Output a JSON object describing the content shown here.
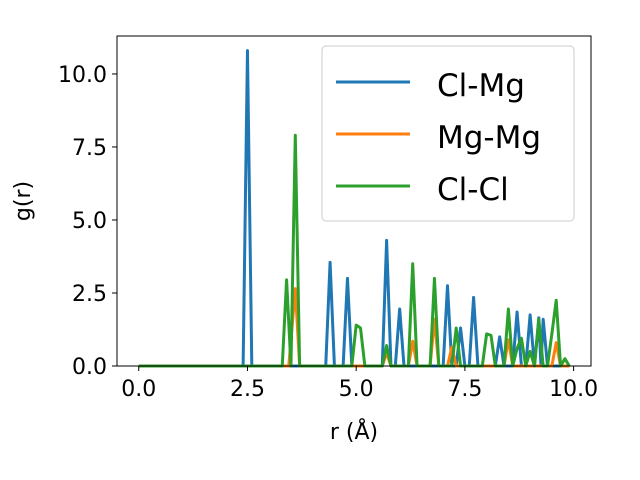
{
  "chart_data": {
    "type": "line",
    "xlabel": "r (Å)",
    "ylabel": "g(r)",
    "xlim": [
      -0.5,
      10.4
    ],
    "ylim": [
      0,
      11.3
    ],
    "xticks": [
      0.0,
      2.5,
      5.0,
      7.5,
      10.0
    ],
    "xtick_labels": [
      "0.0",
      "2.5",
      "5.0",
      "7.5",
      "10.0"
    ],
    "yticks": [
      0.0,
      2.5,
      5.0,
      7.5,
      10.0
    ],
    "ytick_labels": [
      "0.0",
      "2.5",
      "5.0",
      "7.5",
      "10.0"
    ],
    "legend_position": "top-right",
    "grid": false,
    "series": [
      {
        "name": "Cl-Mg",
        "color": "#1f77b4",
        "x": [
          0.0,
          2.4,
          2.5,
          2.6,
          4.3,
          4.4,
          4.5,
          4.7,
          4.8,
          4.9,
          5.6,
          5.7,
          5.8,
          5.9,
          6.0,
          6.1,
          7.0,
          7.1,
          7.2,
          7.3,
          7.4,
          7.5,
          7.6,
          7.7,
          7.8,
          8.2,
          8.3,
          8.4,
          8.6,
          8.7,
          8.8,
          8.9,
          9.0,
          9.1,
          9.2,
          9.25,
          9.3,
          9.4,
          9.9
        ],
        "y": [
          0.0,
          0.0,
          10.8,
          0.0,
          0.0,
          3.55,
          0.0,
          0.0,
          3.0,
          0.0,
          0.0,
          4.3,
          0.0,
          0.0,
          1.95,
          0.0,
          0.0,
          2.75,
          0.0,
          0.0,
          1.3,
          0.0,
          0.0,
          2.35,
          0.0,
          0.0,
          1.0,
          0.0,
          0.0,
          1.85,
          0.0,
          0.0,
          1.75,
          0.0,
          1.65,
          0.0,
          1.6,
          0.0,
          0.0
        ]
      },
      {
        "name": "Mg-Mg",
        "color": "#ff7f0e",
        "x": [
          0.0,
          3.45,
          3.6,
          3.7,
          5.6,
          5.7,
          5.8,
          6.2,
          6.3,
          6.4,
          6.7,
          6.8,
          6.9,
          7.1,
          7.2,
          7.3,
          8.4,
          8.5,
          8.6,
          9.5,
          9.6,
          9.7,
          9.9
        ],
        "y": [
          0.0,
          0.0,
          2.65,
          0.0,
          0.0,
          0.45,
          0.0,
          0.0,
          0.85,
          0.0,
          0.0,
          1.6,
          0.0,
          0.0,
          0.65,
          0.0,
          0.0,
          0.9,
          0.0,
          0.0,
          0.8,
          0.0,
          0.0
        ]
      },
      {
        "name": "Cl-Cl",
        "color": "#2ca02c",
        "x": [
          0.0,
          3.3,
          3.4,
          3.5,
          3.6,
          3.7,
          4.9,
          5.0,
          5.1,
          5.2,
          5.6,
          5.7,
          5.8,
          6.2,
          6.3,
          6.4,
          6.7,
          6.8,
          6.9,
          7.2,
          7.3,
          7.4,
          7.9,
          8.0,
          8.1,
          8.2,
          8.4,
          8.5,
          8.6,
          8.7,
          8.8,
          8.9,
          9.0,
          9.1,
          9.2,
          9.3,
          9.4,
          9.5,
          9.6,
          9.7,
          9.8,
          9.9
        ],
        "y": [
          0.0,
          0.0,
          2.95,
          0.0,
          7.9,
          0.0,
          0.0,
          1.4,
          1.3,
          0.0,
          0.0,
          0.7,
          0.0,
          0.0,
          3.5,
          0.0,
          0.0,
          3.0,
          0.0,
          0.0,
          1.3,
          0.0,
          0.0,
          1.1,
          1.05,
          0.0,
          0.0,
          1.95,
          0.0,
          0.6,
          0.95,
          0.0,
          0.5,
          0.0,
          1.6,
          0.0,
          0.0,
          1.1,
          2.25,
          0.0,
          0.25,
          0.0
        ]
      }
    ]
  }
}
